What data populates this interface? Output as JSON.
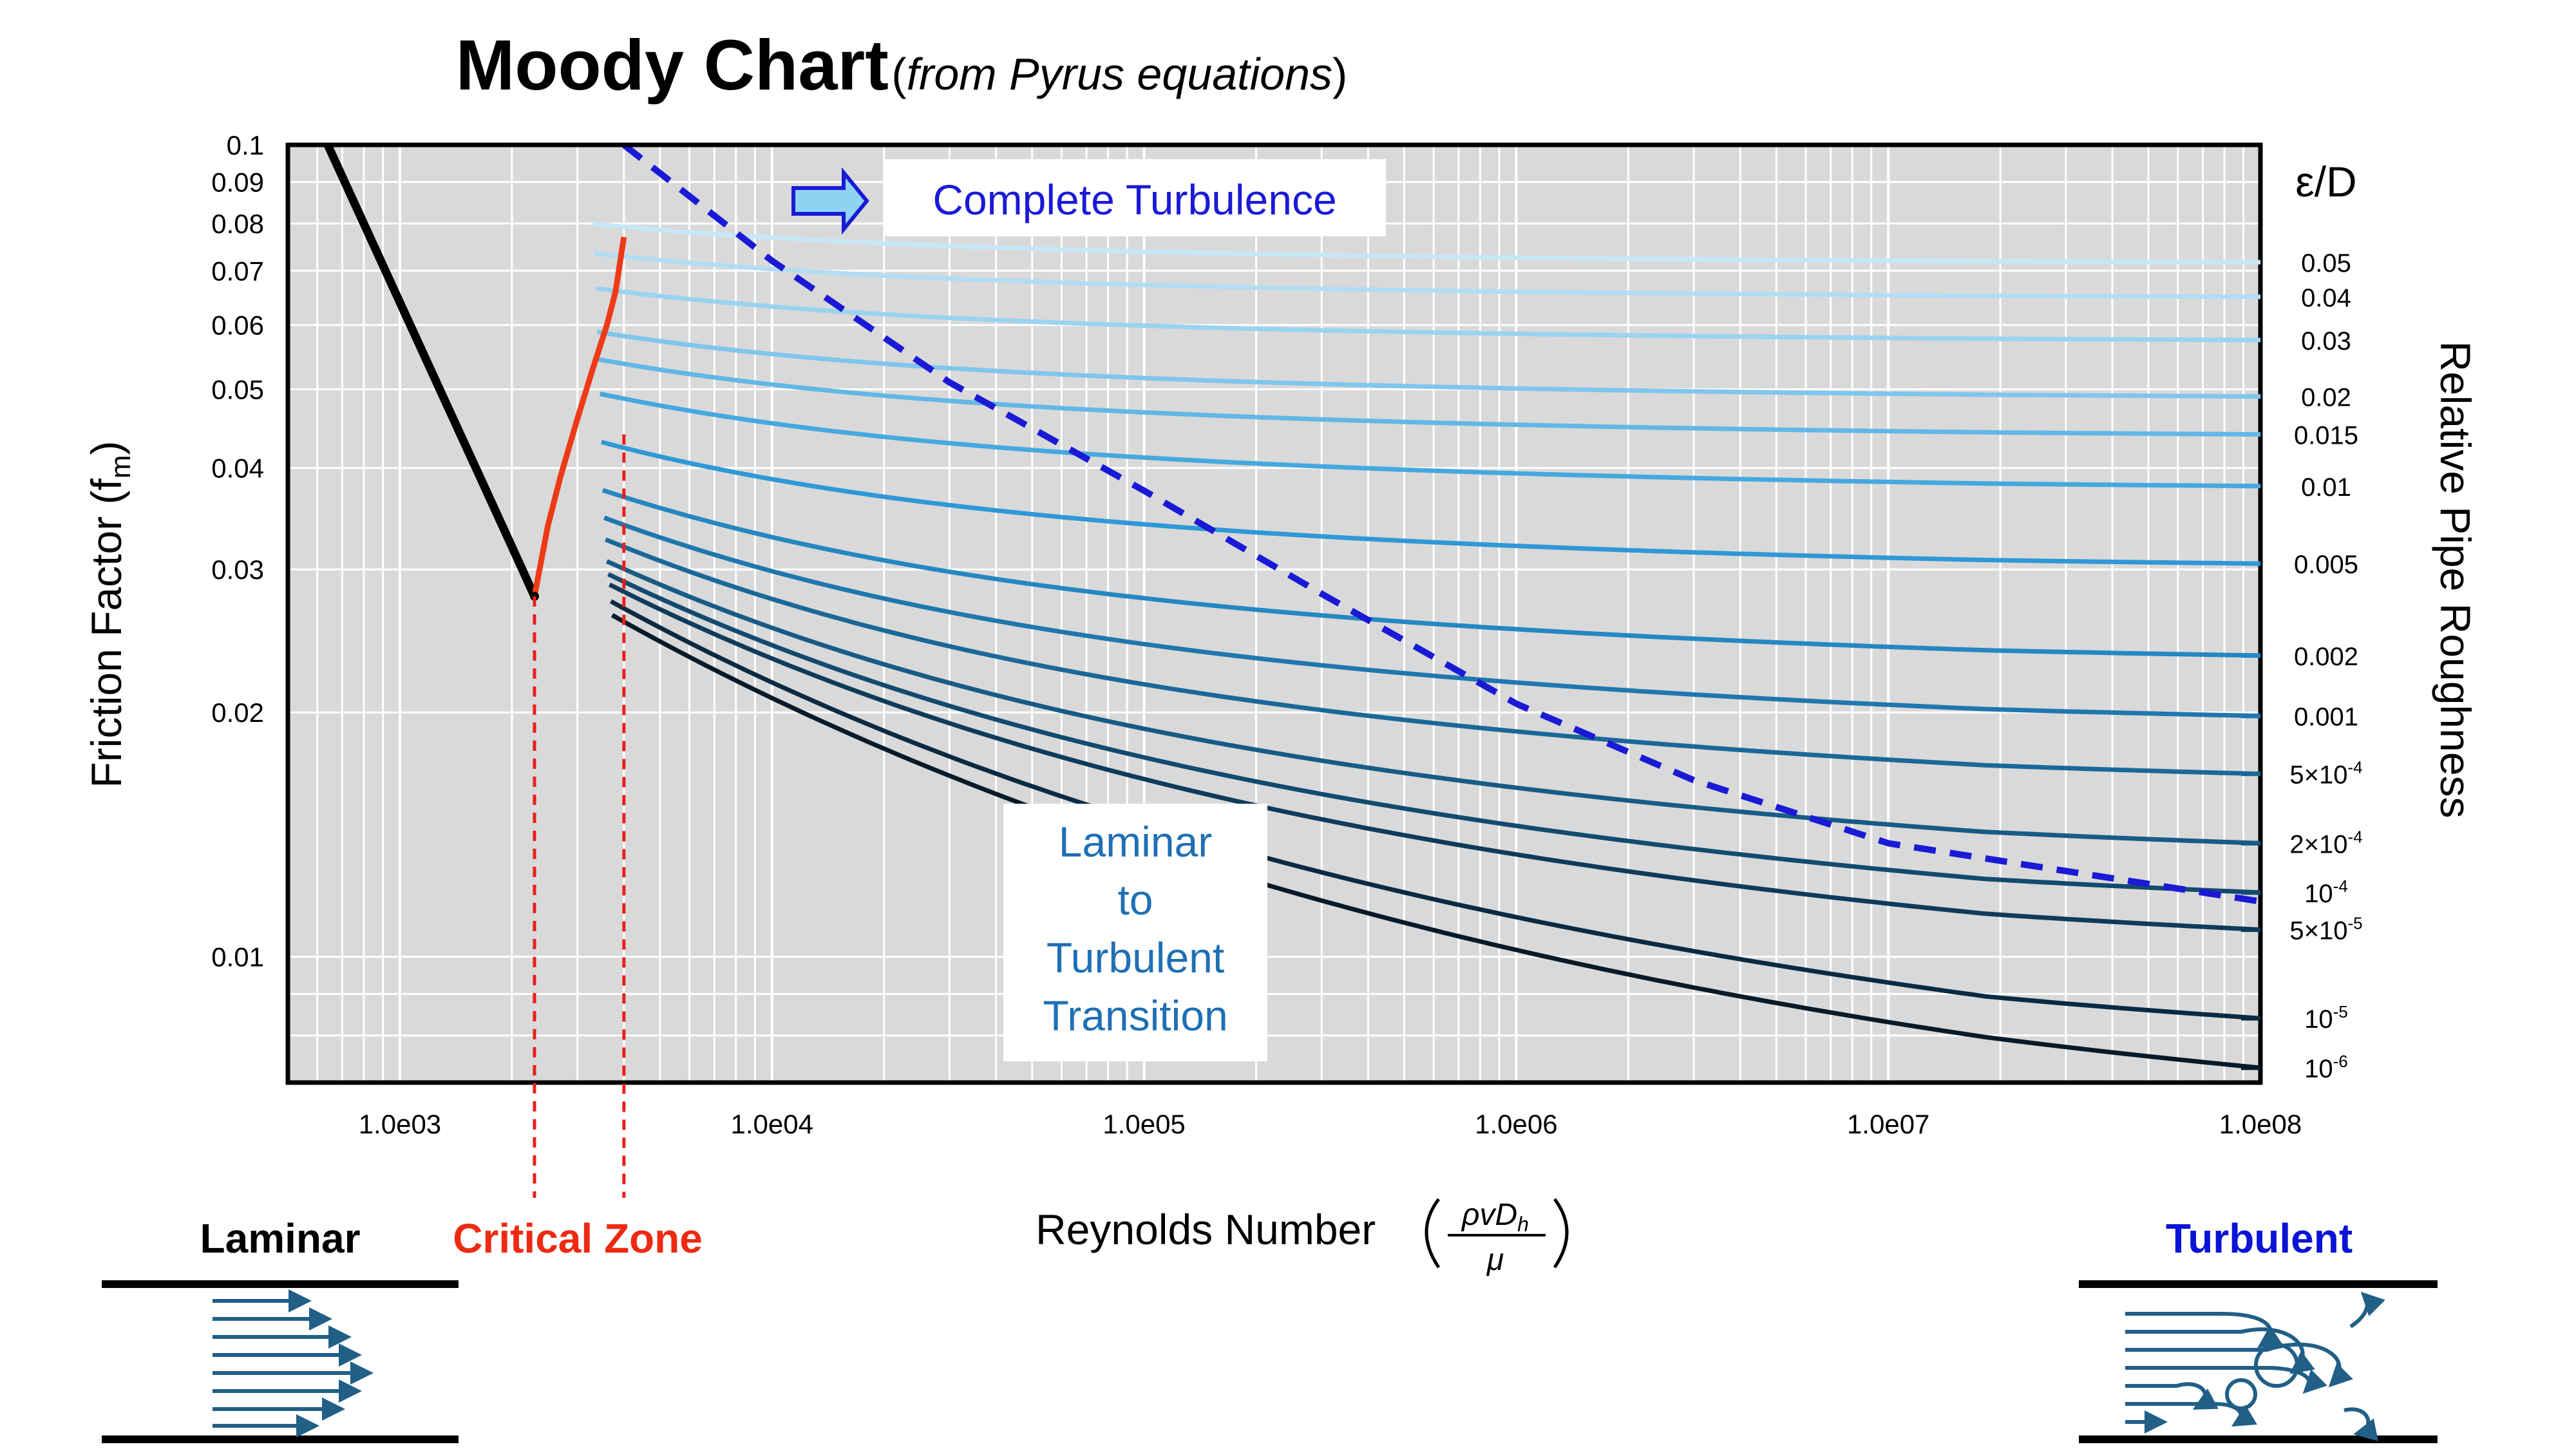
{
  "header": {
    "title_main": "Moody Chart",
    "title_sub": "from Pyrus equations"
  },
  "annotations": {
    "complete_turbulence": "Complete Turbulence",
    "transition_lines": [
      "Laminar",
      "to",
      "Turbulent",
      "Transition"
    ],
    "roughness_header": "ε/D",
    "laminar_label": "Laminar",
    "critical_label": "Critical Zone",
    "turbulent_label": "Turbulent"
  },
  "colors": {
    "laminar": "#000000",
    "critical": "#ee3a17",
    "complete_turbulence_line": "#1a1ad6",
    "critical_dash": "#e8201a",
    "plot_bg": "#d9d9d9",
    "pipe_arrows": "#215f86",
    "turbulent_label": "#0a14d6",
    "transition_text": "#1f6fb5"
  },
  "icons": {
    "arrow": "right-arrow-icon",
    "laminar_pipe": "laminar-flow-icon",
    "turbulent_pipe": "turbulent-flow-icon"
  },
  "chart_data": {
    "type": "line",
    "title": "Moody Chart (from Pyrus equations)",
    "xlabel": "Reynolds Number",
    "ylabel": "Friction Factor (f_m)",
    "y2label": "Relative Pipe Roughness",
    "x_scale": "log",
    "y_scale": "log",
    "xlim": [
      500,
      100000000
    ],
    "ylim": [
      0.007,
      0.1
    ],
    "grid": true,
    "x_ticks": [
      {
        "v": 1000,
        "label": "1.0e03"
      },
      {
        "v": 10000,
        "label": "1.0e04"
      },
      {
        "v": 100000,
        "label": "1.0e05"
      },
      {
        "v": 1000000,
        "label": "1.0e06"
      },
      {
        "v": 10000000,
        "label": "1.0e07"
      },
      {
        "v": 100000000,
        "label": "1.0e08"
      }
    ],
    "y_ticks": [
      {
        "v": 0.1,
        "label": "0.1"
      },
      {
        "v": 0.09,
        "label": "0.09"
      },
      {
        "v": 0.08,
        "label": "0.08"
      },
      {
        "v": 0.07,
        "label": "0.07"
      },
      {
        "v": 0.06,
        "label": "0.06"
      },
      {
        "v": 0.05,
        "label": "0.05"
      },
      {
        "v": 0.04,
        "label": "0.04"
      },
      {
        "v": 0.03,
        "label": "0.03"
      },
      {
        "v": 0.02,
        "label": "0.02"
      },
      {
        "v": 0.01,
        "label": "0.01"
      }
    ],
    "laminar": {
      "x": [
        640,
        800,
        1000,
        1300,
        1600,
        2000,
        2300
      ],
      "y": [
        0.1,
        0.08,
        0.064,
        0.0492,
        0.04,
        0.032,
        0.0278
      ]
    },
    "critical": {
      "x": [
        2300,
        2500,
        2700,
        3000,
        3300,
        3600,
        3800,
        4000
      ],
      "y": [
        0.0278,
        0.034,
        0.039,
        0.046,
        0.053,
        0.06,
        0.066,
        0.077
      ]
    },
    "critical_zone_re": [
      2300,
      4000
    ],
    "complete_turbulence_line": {
      "x": [
        4000,
        10000,
        30000,
        100000,
        300000,
        1000000,
        3000000,
        10000000,
        100000000
      ],
      "y": [
        0.1,
        0.072,
        0.051,
        0.0375,
        0.028,
        0.0205,
        0.0165,
        0.0138,
        0.0117
      ]
    },
    "roughness": [
      {
        "label": "0.05",
        "sup": "",
        "f": 0.0717
      },
      {
        "label": "0.04",
        "sup": "",
        "f": 0.065
      },
      {
        "label": "0.03",
        "sup": "",
        "f": 0.0575
      },
      {
        "label": "0.02",
        "sup": "",
        "f": 0.049
      },
      {
        "label": "0.015",
        "sup": "",
        "f": 0.044
      },
      {
        "label": "0.01",
        "sup": "",
        "f": 0.038
      },
      {
        "label": "0.005",
        "sup": "",
        "f": 0.0305
      },
      {
        "label": "0.002",
        "sup": "",
        "f": 0.0235
      },
      {
        "label": "0.001",
        "sup": "",
        "f": 0.0198
      },
      {
        "label": "5×10",
        "sup": "-4",
        "f": 0.0168
      },
      {
        "label": "2×10",
        "sup": "-4",
        "f": 0.0138
      },
      {
        "label": "10",
        "sup": "-4",
        "f": 0.012
      },
      {
        "label": "5×10",
        "sup": "-5",
        "f": 0.0108
      },
      {
        "label": "10",
        "sup": "-5",
        "f": 0.0084
      },
      {
        "label": "10",
        "sup": "-6",
        "f": 0.0073
      }
    ]
  }
}
